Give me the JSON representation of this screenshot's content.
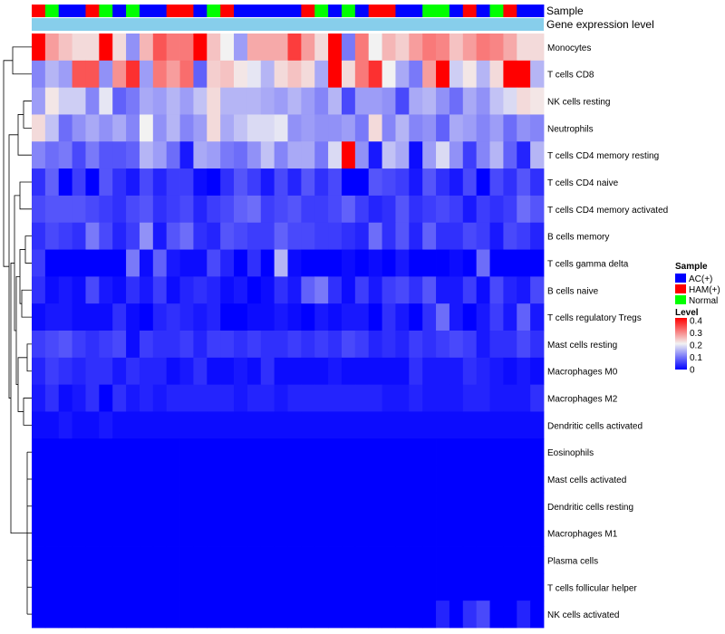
{
  "chart_data": {
    "type": "heatmap",
    "title": "",
    "annotations": {
      "sample_label": "Sample",
      "expression_label": "Gene expression level"
    },
    "columns": 38,
    "sample_groups": [
      "HAM(+)",
      "Normal",
      "AC(+)",
      "AC(+)",
      "HAM(+)",
      "Normal",
      "AC(+)",
      "Normal",
      "AC(+)",
      "AC(+)",
      "HAM(+)",
      "HAM(+)",
      "AC(+)",
      "Normal",
      "HAM(+)",
      "AC(+)",
      "AC(+)",
      "AC(+)",
      "AC(+)",
      "AC(+)",
      "HAM(+)",
      "Normal",
      "AC(+)",
      "Normal",
      "AC(+)",
      "HAM(+)",
      "HAM(+)",
      "AC(+)",
      "AC(+)",
      "Normal",
      "Normal",
      "AC(+)",
      "HAM(+)",
      "AC(+)",
      "Normal",
      "HAM(+)",
      "AC(+)",
      "AC(+)"
    ],
    "rows": [
      {
        "name": "Monocytes",
        "values": [
          0.4,
          0.27,
          0.24,
          0.22,
          0.22,
          0.4,
          0.22,
          0.12,
          0.25,
          0.33,
          0.3,
          0.3,
          0.4,
          0.24,
          0.2,
          0.13,
          0.26,
          0.26,
          0.26,
          0.35,
          0.27,
          0.22,
          0.4,
          0.1,
          0.3,
          0.2,
          0.25,
          0.23,
          0.27,
          0.3,
          0.29,
          0.24,
          0.27,
          0.3,
          0.29,
          0.26,
          0.22,
          0.22
        ]
      },
      {
        "name": "T cells CD8",
        "values": [
          0.11,
          0.15,
          0.13,
          0.33,
          0.33,
          0.12,
          0.28,
          0.36,
          0.13,
          0.3,
          0.27,
          0.31,
          0.08,
          0.23,
          0.24,
          0.21,
          0.19,
          0.15,
          0.22,
          0.24,
          0.22,
          0.14,
          0.4,
          0.22,
          0.3,
          0.36,
          0.2,
          0.14,
          0.1,
          0.27,
          0.4,
          0.17,
          0.21,
          0.15,
          0.22,
          0.4,
          0.4,
          0.15
        ]
      },
      {
        "name": "NK cells resting",
        "values": [
          0.13,
          0.21,
          0.17,
          0.17,
          0.11,
          0.19,
          0.08,
          0.1,
          0.14,
          0.13,
          0.15,
          0.13,
          0.16,
          0.22,
          0.15,
          0.15,
          0.15,
          0.14,
          0.13,
          0.15,
          0.13,
          0.11,
          0.15,
          0.06,
          0.13,
          0.13,
          0.12,
          0.06,
          0.14,
          0.15,
          0.12,
          0.09,
          0.14,
          0.12,
          0.16,
          0.18,
          0.22,
          0.21
        ]
      },
      {
        "name": "Neutrophils",
        "values": [
          0.22,
          0.16,
          0.09,
          0.12,
          0.14,
          0.12,
          0.14,
          0.11,
          0.2,
          0.12,
          0.15,
          0.11,
          0.13,
          0.22,
          0.14,
          0.16,
          0.18,
          0.18,
          0.19,
          0.12,
          0.13,
          0.12,
          0.12,
          0.13,
          0.1,
          0.22,
          0.11,
          0.15,
          0.11,
          0.12,
          0.08,
          0.14,
          0.13,
          0.11,
          0.13,
          0.09,
          0.12,
          0.11
        ]
      },
      {
        "name": "T cells CD4 memory resting",
        "values": [
          0.11,
          0.09,
          0.1,
          0.06,
          0.1,
          0.07,
          0.07,
          0.08,
          0.15,
          0.13,
          0.09,
          0.02,
          0.14,
          0.13,
          0.1,
          0.09,
          0.12,
          0.16,
          0.11,
          0.14,
          0.14,
          0.1,
          0.18,
          0.4,
          0.12,
          0.02,
          0.16,
          0.14,
          0.01,
          0.13,
          0.18,
          0.12,
          0.05,
          0.11,
          0.15,
          0.08,
          0.03,
          0.15
        ]
      },
      {
        "name": "T cells CD4 naive",
        "values": [
          0.04,
          0.08,
          0.0,
          0.05,
          0.0,
          0.07,
          0.04,
          0.02,
          0.06,
          0.03,
          0.05,
          0.05,
          0.01,
          0.0,
          0.04,
          0.07,
          0.05,
          0.02,
          0.06,
          0.03,
          0.07,
          0.04,
          0.06,
          0.0,
          0.0,
          0.07,
          0.06,
          0.05,
          0.02,
          0.07,
          0.04,
          0.02,
          0.06,
          0.0,
          0.06,
          0.04,
          0.07,
          0.04
        ]
      },
      {
        "name": "T cells CD4 memory activated",
        "values": [
          0.06,
          0.07,
          0.07,
          0.07,
          0.06,
          0.05,
          0.04,
          0.06,
          0.07,
          0.04,
          0.05,
          0.06,
          0.03,
          0.05,
          0.06,
          0.08,
          0.09,
          0.05,
          0.06,
          0.07,
          0.05,
          0.05,
          0.06,
          0.08,
          0.05,
          0.03,
          0.04,
          0.07,
          0.04,
          0.05,
          0.06,
          0.05,
          0.02,
          0.05,
          0.04,
          0.05,
          0.09,
          0.07
        ]
      },
      {
        "name": "B cells memory",
        "values": [
          0.04,
          0.06,
          0.05,
          0.04,
          0.1,
          0.06,
          0.03,
          0.05,
          0.12,
          0.02,
          0.07,
          0.09,
          0.04,
          0.03,
          0.07,
          0.06,
          0.05,
          0.05,
          0.08,
          0.06,
          0.06,
          0.05,
          0.05,
          0.04,
          0.03,
          0.09,
          0.04,
          0.07,
          0.03,
          0.08,
          0.04,
          0.04,
          0.06,
          0.05,
          0.02,
          0.06,
          0.05,
          0.03
        ]
      },
      {
        "name": "T cells gamma delta",
        "values": [
          0.05,
          0.0,
          0.0,
          0.0,
          0.0,
          0.0,
          0.0,
          0.1,
          0.01,
          0.08,
          0.02,
          0.01,
          0.01,
          0.06,
          0.03,
          0.0,
          0.04,
          0.0,
          0.15,
          0.01,
          0.0,
          0.0,
          0.0,
          0.01,
          0.0,
          0.01,
          0.0,
          0.02,
          0.0,
          0.0,
          0.0,
          0.01,
          0.0,
          0.09,
          0.0,
          0.0,
          0.0,
          0.0
        ]
      },
      {
        "name": "B cells naive",
        "values": [
          0.04,
          0.01,
          0.02,
          0.01,
          0.06,
          0.02,
          0.01,
          0.04,
          0.02,
          0.05,
          0.01,
          0.03,
          0.04,
          0.03,
          0.01,
          0.02,
          0.0,
          0.01,
          0.04,
          0.02,
          0.08,
          0.1,
          0.04,
          0.01,
          0.05,
          0.02,
          0.05,
          0.06,
          0.04,
          0.07,
          0.02,
          0.02,
          0.05,
          0.01,
          0.06,
          0.03,
          0.02,
          0.06
        ]
      },
      {
        "name": "T cells regulatory  Tregs",
        "values": [
          0.01,
          0.02,
          0.02,
          0.01,
          0.01,
          0.01,
          0.04,
          0.01,
          0.0,
          0.03,
          0.04,
          0.03,
          0.02,
          0.03,
          0.0,
          0.0,
          0.01,
          0.01,
          0.02,
          0.01,
          0.0,
          0.02,
          0.01,
          0.02,
          0.02,
          0.0,
          0.04,
          0.02,
          0.0,
          0.04,
          0.09,
          0.02,
          0.0,
          0.02,
          0.05,
          0.02,
          0.08,
          0.02
        ]
      },
      {
        "name": "Mast cells resting",
        "values": [
          0.05,
          0.06,
          0.07,
          0.05,
          0.04,
          0.05,
          0.06,
          0.01,
          0.05,
          0.04,
          0.04,
          0.05,
          0.03,
          0.05,
          0.05,
          0.04,
          0.05,
          0.04,
          0.04,
          0.05,
          0.04,
          0.05,
          0.04,
          0.06,
          0.05,
          0.03,
          0.04,
          0.03,
          0.05,
          0.04,
          0.05,
          0.06,
          0.05,
          0.02,
          0.04,
          0.04,
          0.06,
          0.04
        ]
      },
      {
        "name": "Macrophages M0",
        "values": [
          0.03,
          0.05,
          0.04,
          0.03,
          0.04,
          0.04,
          0.02,
          0.04,
          0.03,
          0.03,
          0.01,
          0.02,
          0.04,
          0.01,
          0.01,
          0.02,
          0.01,
          0.04,
          0.01,
          0.01,
          0.01,
          0.01,
          0.02,
          0.01,
          0.01,
          0.01,
          0.01,
          0.01,
          0.04,
          0.02,
          0.02,
          0.02,
          0.04,
          0.03,
          0.02,
          0.01,
          0.02,
          0.01
        ]
      },
      {
        "name": "Macrophages M2",
        "values": [
          0.02,
          0.04,
          0.01,
          0.02,
          0.04,
          0.0,
          0.04,
          0.02,
          0.03,
          0.02,
          0.03,
          0.03,
          0.03,
          0.03,
          0.03,
          0.02,
          0.03,
          0.03,
          0.02,
          0.03,
          0.03,
          0.03,
          0.03,
          0.03,
          0.03,
          0.03,
          0.02,
          0.02,
          0.03,
          0.02,
          0.02,
          0.02,
          0.03,
          0.03,
          0.02,
          0.02,
          0.02,
          0.04
        ]
      },
      {
        "name": "Dendritic cells activated",
        "values": [
          0.01,
          0.01,
          0.02,
          0.01,
          0.01,
          0.02,
          0.01,
          0.01,
          0.01,
          0.01,
          0.01,
          0.01,
          0.01,
          0.01,
          0.01,
          0.01,
          0.01,
          0.01,
          0.01,
          0.01,
          0.01,
          0.01,
          0.01,
          0.01,
          0.01,
          0.01,
          0.01,
          0.01,
          0.01,
          0.01,
          0.01,
          0.01,
          0.01,
          0.01,
          0.01,
          0.01,
          0.01,
          0.01
        ]
      },
      {
        "name": "Eosinophils",
        "values": [
          0,
          0,
          0,
          0,
          0,
          0,
          0,
          0,
          0,
          0,
          0,
          0,
          0,
          0,
          0,
          0,
          0,
          0,
          0,
          0,
          0,
          0,
          0,
          0,
          0,
          0,
          0,
          0,
          0,
          0,
          0,
          0,
          0,
          0,
          0,
          0,
          0,
          0
        ]
      },
      {
        "name": "Mast cells activated",
        "values": [
          0,
          0,
          0,
          0,
          0,
          0,
          0,
          0,
          0,
          0,
          0,
          0,
          0,
          0,
          0,
          0,
          0,
          0,
          0,
          0,
          0,
          0,
          0,
          0,
          0,
          0,
          0,
          0,
          0,
          0,
          0,
          0,
          0,
          0,
          0,
          0,
          0,
          0
        ]
      },
      {
        "name": "Dendritic cells resting",
        "values": [
          0,
          0,
          0,
          0,
          0,
          0,
          0,
          0,
          0,
          0,
          0,
          0,
          0,
          0,
          0,
          0,
          0,
          0,
          0,
          0,
          0,
          0,
          0,
          0,
          0,
          0,
          0,
          0,
          0,
          0,
          0,
          0,
          0,
          0,
          0,
          0,
          0,
          0
        ]
      },
      {
        "name": "Macrophages M1",
        "values": [
          0,
          0,
          0,
          0,
          0,
          0,
          0,
          0,
          0,
          0,
          0,
          0,
          0,
          0,
          0,
          0,
          0,
          0,
          0,
          0,
          0,
          0,
          0,
          0,
          0,
          0,
          0,
          0,
          0,
          0,
          0,
          0,
          0,
          0,
          0,
          0,
          0,
          0
        ]
      },
      {
        "name": "Plasma cells",
        "values": [
          0,
          0,
          0,
          0,
          0,
          0,
          0,
          0,
          0,
          0,
          0,
          0,
          0,
          0,
          0,
          0,
          0,
          0,
          0,
          0,
          0,
          0,
          0,
          0,
          0,
          0,
          0,
          0,
          0,
          0,
          0,
          0,
          0,
          0,
          0,
          0,
          0,
          0
        ]
      },
      {
        "name": "T cells follicular helper",
        "values": [
          0,
          0,
          0,
          0,
          0,
          0,
          0,
          0,
          0,
          0,
          0,
          0,
          0,
          0,
          0,
          0,
          0,
          0,
          0,
          0,
          0,
          0,
          0,
          0,
          0,
          0,
          0,
          0,
          0,
          0,
          0,
          0,
          0,
          0,
          0,
          0,
          0,
          0
        ]
      },
      {
        "name": "NK cells activated",
        "values": [
          0,
          0,
          0,
          0,
          0,
          0,
          0,
          0,
          0,
          0,
          0,
          0,
          0,
          0,
          0,
          0,
          0,
          0,
          0,
          0,
          0,
          0,
          0,
          0,
          0,
          0,
          0,
          0,
          0,
          0,
          0.03,
          0,
          0.04,
          0.06,
          0,
          0,
          0.03,
          0
        ]
      }
    ],
    "color_scale": {
      "min": 0,
      "max": 0.4,
      "low": "#0000ff",
      "mid": "#f2f2f2",
      "high": "#ff0000",
      "mid_value": 0.2
    },
    "expression_bar_color": "#87ceeb",
    "legend": {
      "sample_title": "Sample",
      "sample_entries": [
        {
          "label": "AC(+)",
          "color": "#0000ff"
        },
        {
          "label": "HAM(+)",
          "color": "#ff0000"
        },
        {
          "label": "Normal",
          "color": "#00ff00"
        }
      ],
      "level_title": "Level",
      "level_ticks": [
        "0.4",
        "0.3",
        "0.2",
        "0.1",
        "0"
      ],
      "placement": "right"
    }
  }
}
